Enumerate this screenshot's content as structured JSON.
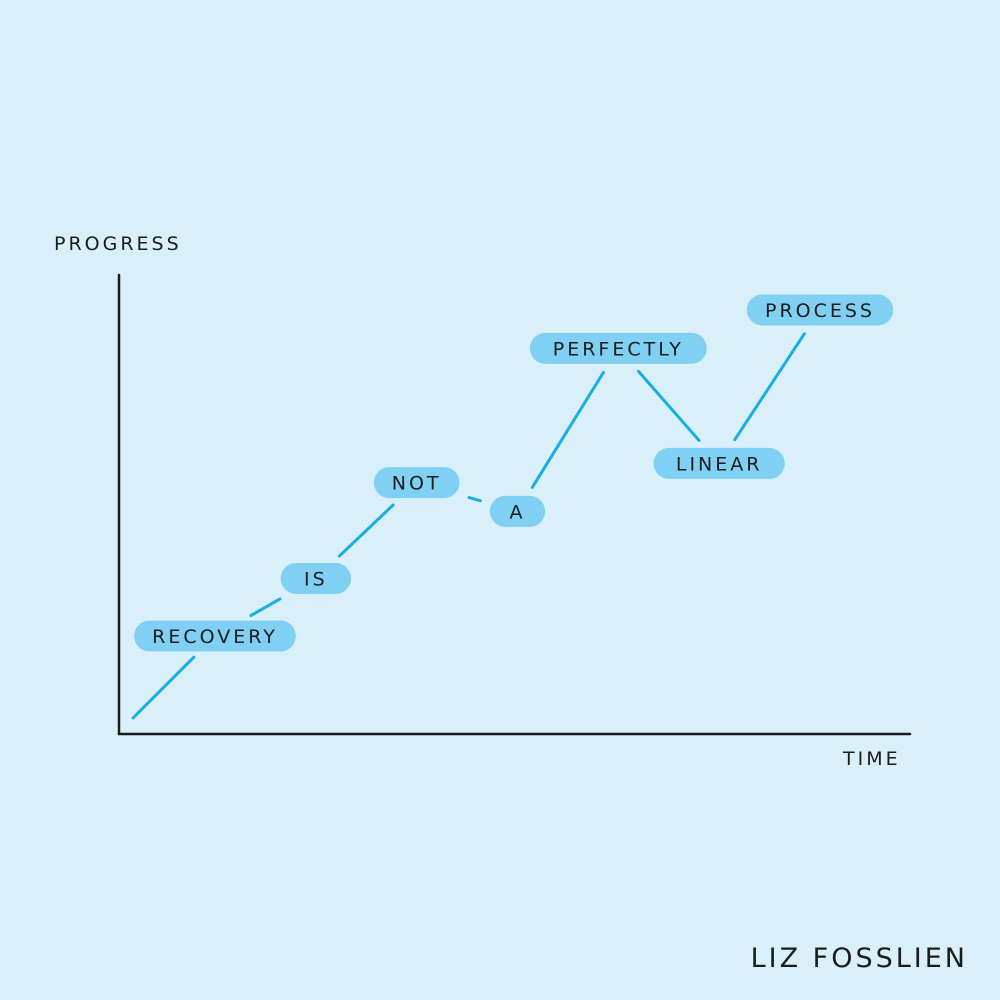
{
  "chart_data": {
    "type": "line",
    "xlabel": "TIME",
    "ylabel": "PROGRESS",
    "grid": false,
    "points": [
      {
        "label": "RECOVERY",
        "x": 1,
        "y": 1.0
      },
      {
        "label": "IS",
        "x": 2,
        "y": 1.6
      },
      {
        "label": "NOT",
        "x": 3,
        "y": 2.6
      },
      {
        "label": "A",
        "x": 4,
        "y": 2.3
      },
      {
        "label": "PERFECTLY",
        "x": 5,
        "y": 4.0
      },
      {
        "label": "LINEAR",
        "x": 6,
        "y": 2.8
      },
      {
        "label": "PROCESS",
        "x": 7,
        "y": 4.4
      }
    ],
    "colors": {
      "background": "#d9eff9",
      "line": "#1aaee2",
      "pill": "#7fd0f2",
      "axis": "#1c1c1c"
    }
  },
  "credit": "LIZ FOSSLIEN"
}
